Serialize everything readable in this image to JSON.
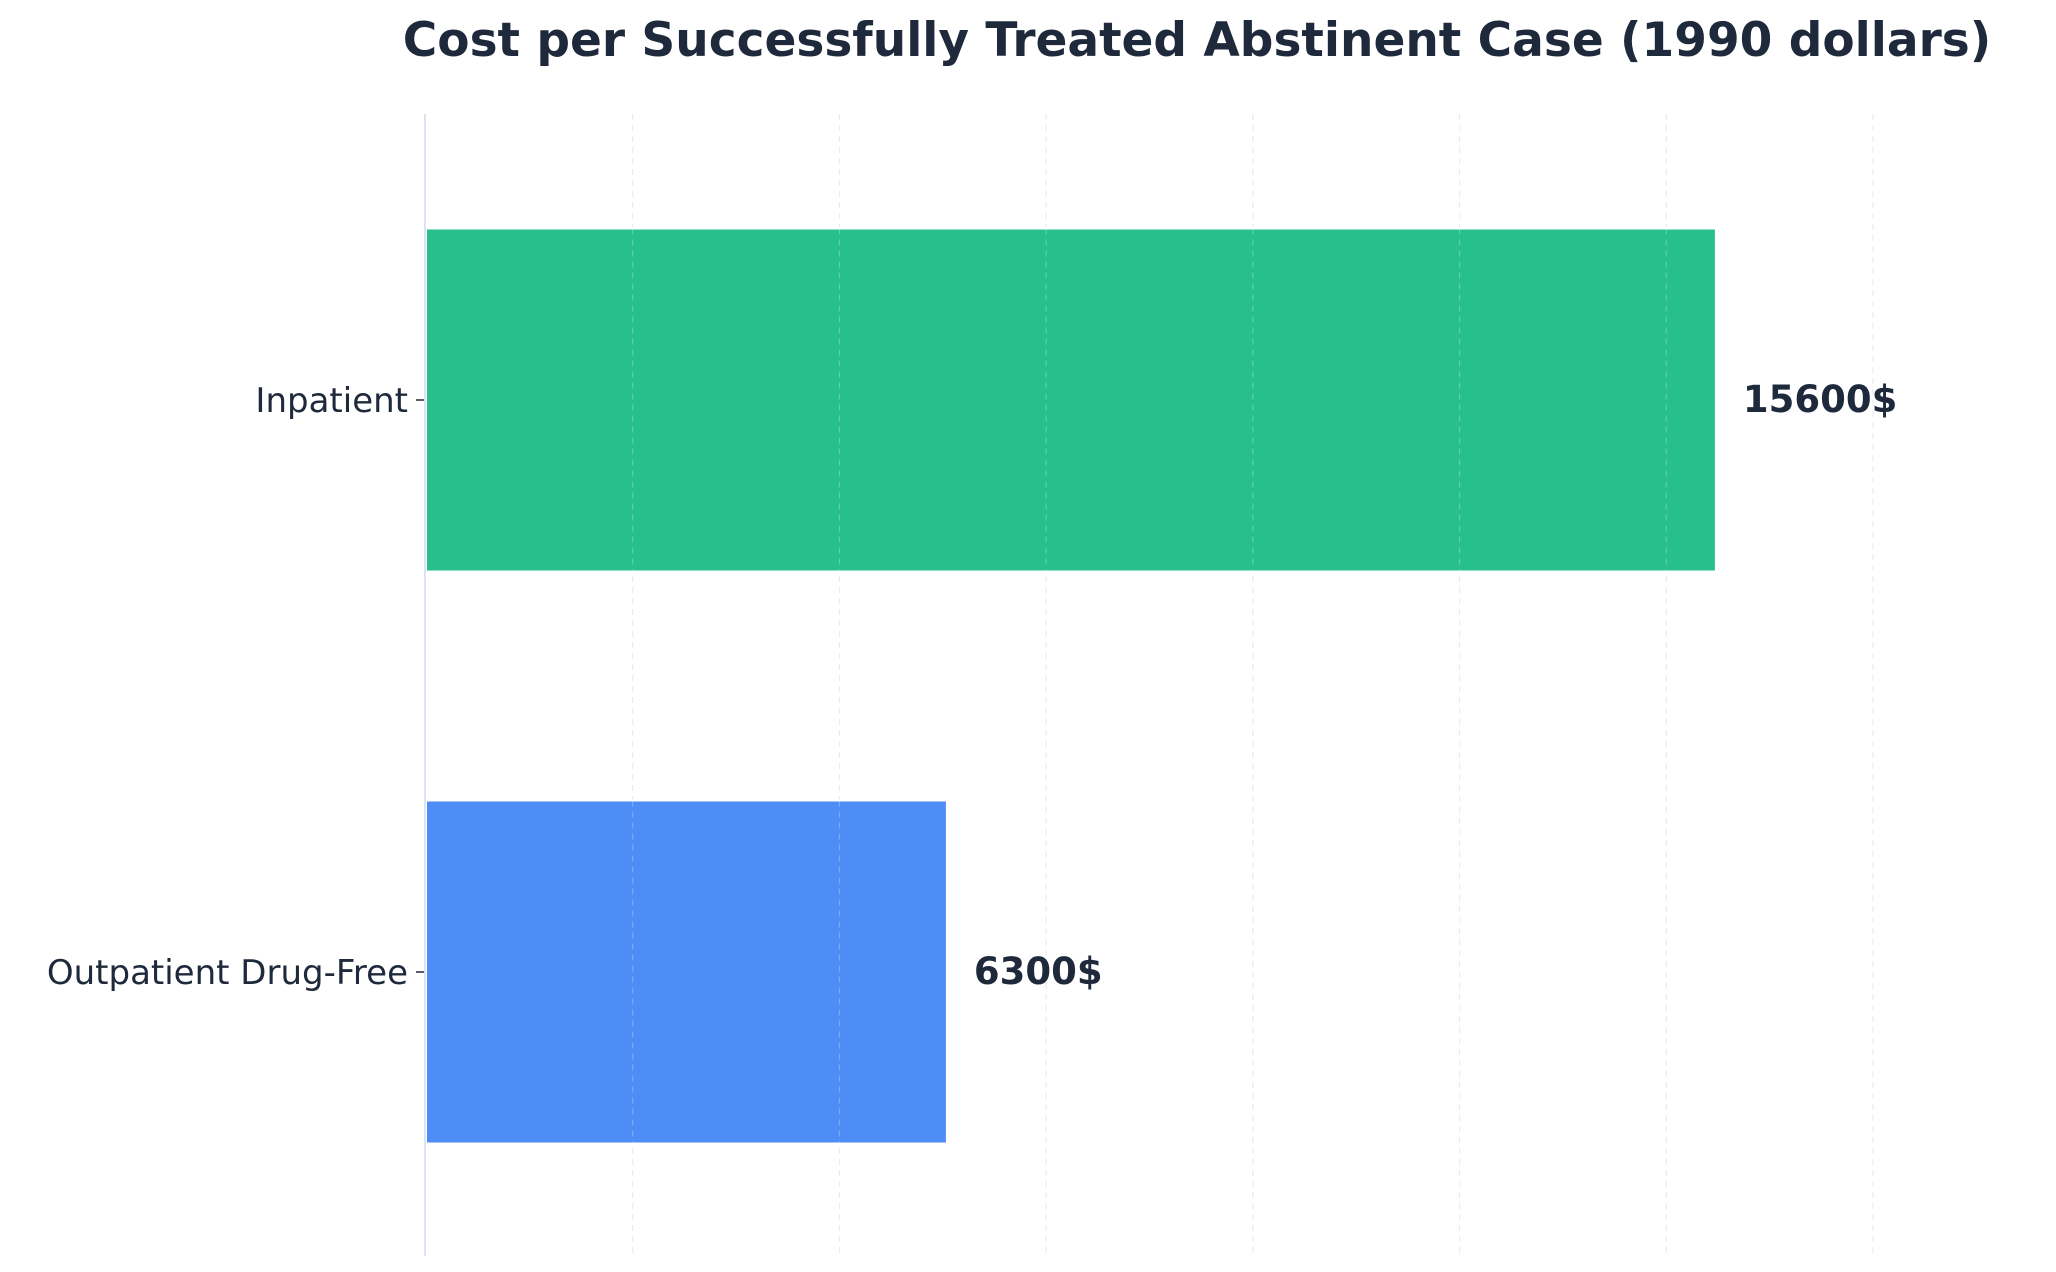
{
  "chart_data": {
    "type": "bar",
    "orientation": "horizontal",
    "title": "Cost per Successfully Treated Abstinent Case (1990 dollars)",
    "xlabel": "",
    "ylabel": "",
    "categories": [
      "Inpatient",
      "Outpatient Drug-Free"
    ],
    "values": [
      15600,
      6300
    ],
    "value_labels": [
      "15600$",
      "6300$"
    ],
    "colors": [
      "#27BF8C",
      "#4E8DF5"
    ],
    "xlim": [
      0,
      17500
    ],
    "grid": true,
    "grid_axis": "x",
    "grid_style": "dashed",
    "x_tick_labels_visible": false,
    "legend": "none"
  },
  "colors": {
    "text": "#1E293B",
    "axis_line": "#DBE4F0",
    "grid": "#D6DCE5"
  }
}
